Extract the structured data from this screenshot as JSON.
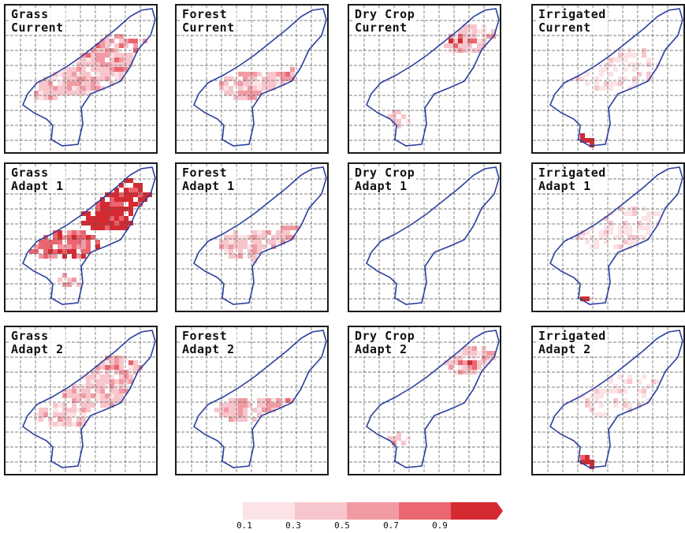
{
  "panels": [
    {
      "id": "grass-current",
      "line1": "Grass",
      "line2": "Current"
    },
    {
      "id": "forest-current",
      "line1": "Forest",
      "line2": "Current"
    },
    {
      "id": "drycrop-current",
      "line1": "Dry Crop",
      "line2": "Current"
    },
    {
      "id": "irrigated-current",
      "line1": "Irrigated",
      "line2": "Current"
    },
    {
      "id": "grass-adapt1",
      "line1": "Grass",
      "line2": "Adapt 1"
    },
    {
      "id": "forest-adapt1",
      "line1": "Forest",
      "line2": "Adapt 1"
    },
    {
      "id": "drycrop-adapt1",
      "line1": "Dry Crop",
      "line2": "Adapt 1"
    },
    {
      "id": "irrigated-adapt1",
      "line1": "Irrigated",
      "line2": "Adapt 1"
    },
    {
      "id": "grass-adapt2",
      "line1": "Grass",
      "line2": "Adapt 2"
    },
    {
      "id": "forest-adapt2",
      "line1": "Forest",
      "line2": "Adapt 2"
    },
    {
      "id": "drycrop-adapt2",
      "line1": "Dry Crop",
      "line2": "Adapt 2"
    },
    {
      "id": "irrigated-adapt2",
      "line1": "Irrigated",
      "line2": "Adapt 2"
    }
  ],
  "colorbar": {
    "labels": [
      "0.1",
      "0.3",
      "0.5",
      "0.7",
      "0.9"
    ],
    "colors": [
      "#fbe3e6",
      "#f7c6cc",
      "#f29aa3",
      "#ea6670",
      "#d62a32"
    ],
    "extend": "max"
  },
  "style": {
    "outline_color": "#2b3f9e",
    "grid_color": "#555555"
  }
}
